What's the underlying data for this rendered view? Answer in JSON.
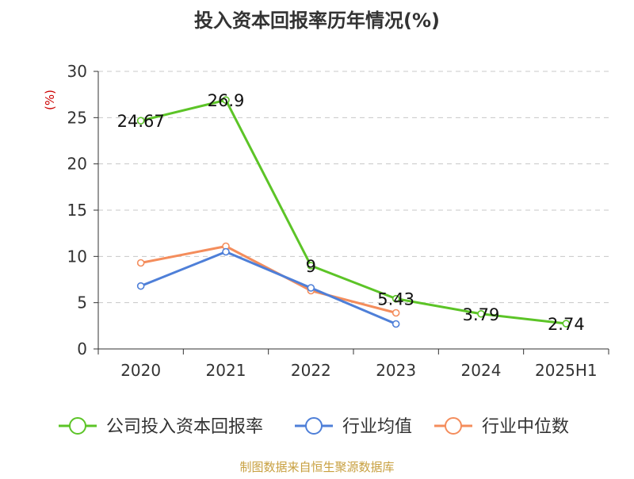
{
  "chart_data": {
    "type": "line",
    "title": "投入资本回报率历年情况(%)",
    "ylabel": "(%)",
    "xlabel": "",
    "categories": [
      "2020",
      "2021",
      "2022",
      "2023",
      "2024",
      "2025H1"
    ],
    "ylim": [
      0,
      30
    ],
    "yticks": [
      0,
      5,
      10,
      15,
      20,
      25,
      30
    ],
    "grid": true,
    "legend_position": "bottom",
    "series": [
      {
        "name": "公司投入资本回报率",
        "color": "#5cc427",
        "values": [
          24.67,
          26.9,
          9,
          5.43,
          3.79,
          2.74
        ],
        "labels": [
          "24.67",
          "26.9",
          "9",
          "5.43",
          "3.79",
          "2.74"
        ]
      },
      {
        "name": "行业均值",
        "color": "#4e7fd8",
        "values": [
          6.8,
          10.5,
          6.6,
          2.7,
          null,
          null
        ]
      },
      {
        "name": "行业中位数",
        "color": "#f48d5c",
        "values": [
          9.3,
          11.1,
          6.3,
          3.9,
          null,
          null
        ]
      }
    ],
    "source_note": "制图数据来自恒生聚源数据库"
  }
}
